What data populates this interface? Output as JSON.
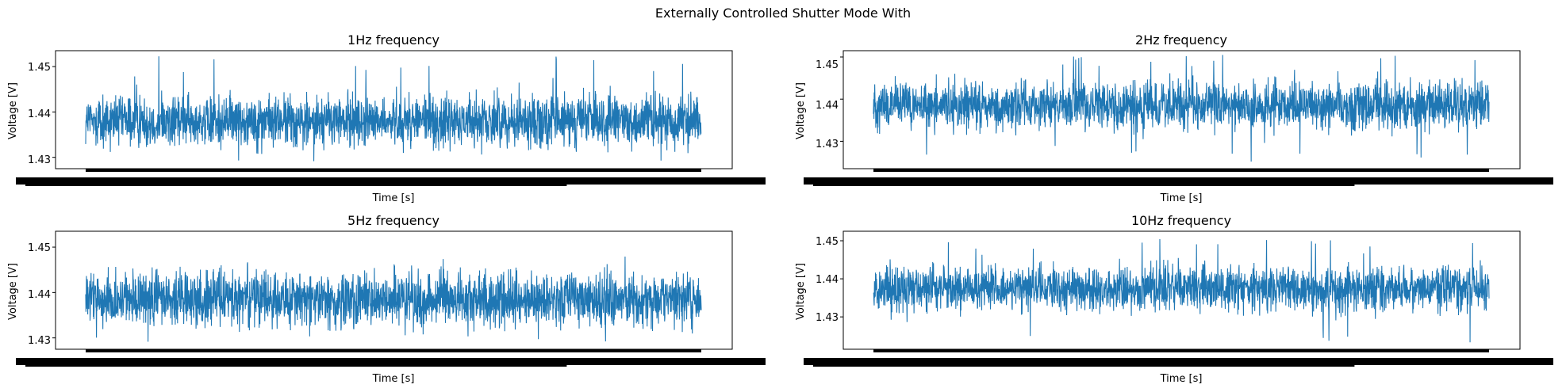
{
  "figure": {
    "suptitle": "Externally Controlled Shutter Mode With"
  },
  "colors": {
    "series": "#1f77b4",
    "axes": "#000000",
    "background": "#ffffff"
  },
  "chart_data": [
    {
      "type": "line",
      "title": "1Hz frequency",
      "xlabel": "Time [s]",
      "ylabel": "Voltage [V]",
      "yticks": [
        "1.43",
        "1.44",
        "1.45"
      ],
      "ylim": [
        1.4275,
        1.4535
      ],
      "x_tick_labels": "illegible (densely overlapping)",
      "series": [
        {
          "baseline": 1.438,
          "band_low": 1.433,
          "band_high": 1.444,
          "spike_max": 1.4525,
          "dip_min": 1.429
        }
      ],
      "grid": false,
      "legend": "none"
    },
    {
      "type": "line",
      "title": "2Hz frequency",
      "xlabel": "Time [s]",
      "ylabel": "Voltage [V]",
      "yticks": [
        "1.43",
        "1.44",
        "1.45"
      ],
      "ylim": [
        1.4235,
        1.4515
      ],
      "x_tick_labels": "illegible (densely overlapping)",
      "series": [
        {
          "baseline": 1.4385,
          "band_low": 1.4335,
          "band_high": 1.4445,
          "spike_max": 1.4505,
          "dip_min": 1.425
        }
      ],
      "grid": false,
      "legend": "none"
    },
    {
      "type": "line",
      "title": "5Hz frequency",
      "xlabel": "Time [s]",
      "ylabel": "Voltage [V]",
      "yticks": [
        "1.43",
        "1.44",
        "1.45"
      ],
      "ylim": [
        1.4275,
        1.4535
      ],
      "x_tick_labels": "illegible (densely overlapping)",
      "series": [
        {
          "baseline": 1.4385,
          "band_low": 1.433,
          "band_high": 1.4445,
          "spike_max": 1.452,
          "dip_min": 1.429
        }
      ],
      "grid": false,
      "legend": "none"
    },
    {
      "type": "line",
      "title": "10Hz frequency",
      "xlabel": "Time [s]",
      "ylabel": "Voltage [V]",
      "yticks": [
        "1.43",
        "1.44",
        "1.45"
      ],
      "ylim": [
        1.4215,
        1.4525
      ],
      "x_tick_labels": "illegible (densely overlapping)",
      "series": [
        {
          "baseline": 1.4375,
          "band_low": 1.432,
          "band_high": 1.4435,
          "spike_max": 1.451,
          "dip_min": 1.423
        }
      ],
      "grid": false,
      "legend": "none"
    }
  ]
}
